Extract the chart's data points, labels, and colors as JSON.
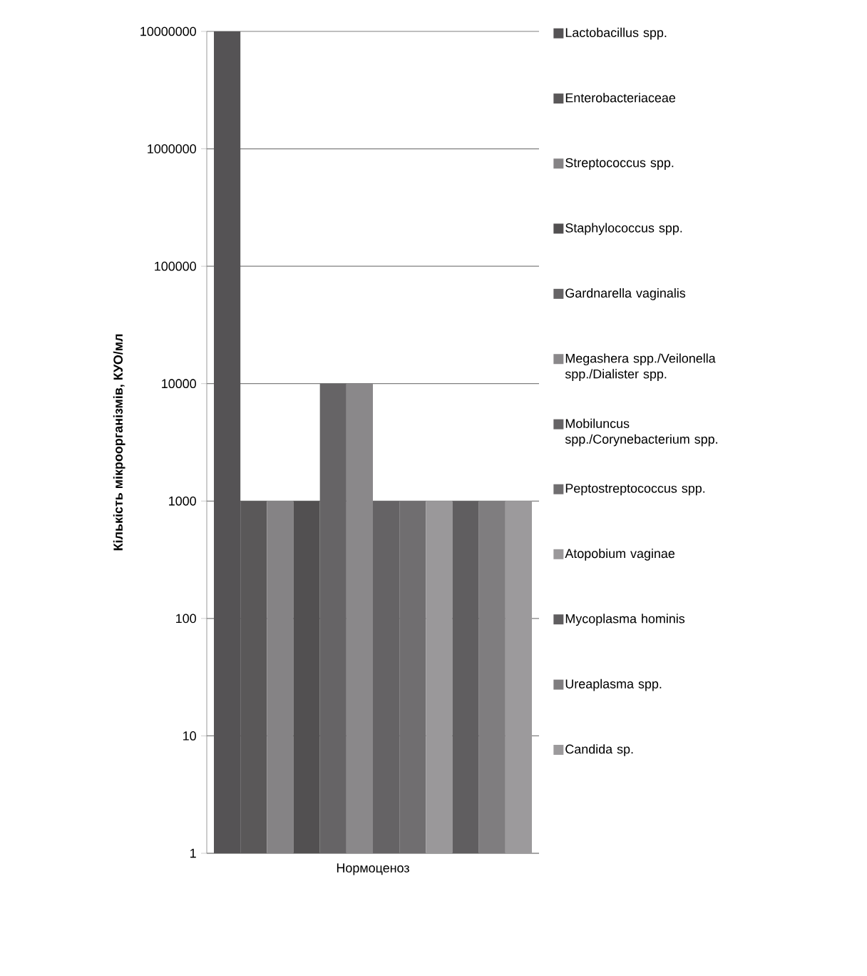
{
  "chart_data": {
    "type": "bar",
    "ylabel": "Кількість мікроорганізмів, КУО/мл",
    "categories": [
      "Нормоценоз"
    ],
    "log": "y",
    "ylim": [
      1,
      10000000
    ],
    "yticks": [
      1,
      10,
      100,
      1000,
      10000,
      100000,
      1000000,
      10000000
    ],
    "grid": "y",
    "legend": "right",
    "series": [
      {
        "name": "Lactobacillus spp.",
        "color": "#555355",
        "values": [
          10000000
        ]
      },
      {
        "name": "Enterobacteriaceae",
        "color": "#5a5859",
        "values": [
          1000
        ]
      },
      {
        "name": "Streptococcus spp.",
        "color": "#858385",
        "values": [
          1000
        ]
      },
      {
        "name": "Staphylococcus spp.",
        "color": "#525051",
        "values": [
          1000
        ]
      },
      {
        "name": "Gardnarella vaginalis",
        "color": "#666466",
        "values": [
          10000
        ]
      },
      {
        "name": "Megashera spp./Veilonella spp./Dialister spp.",
        "color": "#8a888a",
        "values": [
          10000
        ]
      },
      {
        "name": "Mobiluncus spp./Corynebacterium spp.",
        "color": "#656365",
        "values": [
          1000
        ]
      },
      {
        "name": "Peptostreptococcus spp.",
        "color": "#706e70",
        "values": [
          1000
        ]
      },
      {
        "name": "Atopobium vaginae",
        "color": "#9a989a",
        "values": [
          1000
        ]
      },
      {
        "name": "Mycoplasma hominis",
        "color": "#605e60",
        "values": [
          1000
        ]
      },
      {
        "name": "Ureaplasma spp.",
        "color": "#7f7d7f",
        "values": [
          1000
        ]
      },
      {
        "name": "Candida sp.",
        "color": "#9c9a9c",
        "values": [
          1000
        ]
      }
    ]
  }
}
